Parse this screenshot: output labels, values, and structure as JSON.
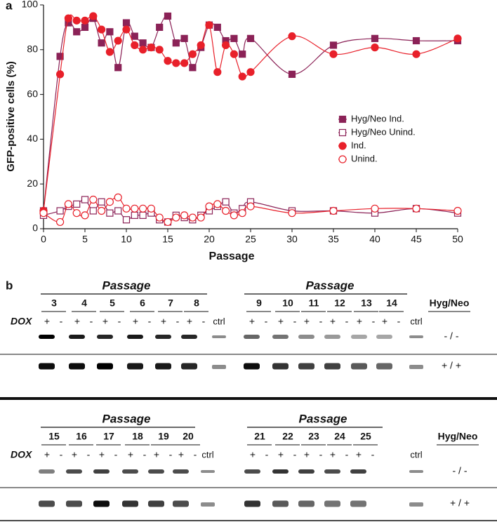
{
  "panel_labels": [
    "a",
    "b"
  ],
  "chart_data": {
    "type": "line",
    "xlabel": "Passage",
    "ylabel": "GFP-positive cells (%)",
    "x": [
      0,
      2,
      3,
      4,
      5,
      6,
      7,
      8,
      9,
      10,
      11,
      12,
      13,
      14,
      15,
      16,
      17,
      18,
      19,
      20,
      21,
      22,
      23,
      24,
      25,
      30,
      35,
      40,
      45,
      50
    ],
    "series": [
      {
        "name": "Hyg/Neo Ind.",
        "color": "#8b2257",
        "marker": "square",
        "filled": true,
        "values": [
          8,
          77,
          92,
          88,
          90,
          94,
          83,
          88,
          72,
          92,
          86,
          83,
          81,
          90,
          95,
          83,
          85,
          72,
          81,
          91,
          90,
          84,
          85,
          78,
          85,
          69,
          82,
          85,
          84,
          84
        ]
      },
      {
        "name": "Hyg/Neo Unind.",
        "color": "#8b2257",
        "marker": "square",
        "filled": false,
        "values": [
          6,
          8,
          10,
          11,
          13,
          8,
          12,
          7,
          8,
          4,
          6,
          6,
          7,
          4,
          3,
          6,
          5,
          4,
          6,
          8,
          10,
          12,
          7,
          9,
          12,
          8,
          8,
          7,
          9,
          7
        ]
      },
      {
        "name": "Ind.",
        "color": "#e8202a",
        "marker": "circle",
        "filled": true,
        "values": [
          8,
          69,
          94,
          93,
          93,
          95,
          89,
          79,
          84,
          89,
          82,
          80,
          81,
          80,
          75,
          74,
          74,
          78,
          82,
          91,
          70,
          82,
          78,
          68,
          70,
          86,
          78,
          81,
          78,
          85
        ]
      },
      {
        "name": "Unind.",
        "color": "#e8202a",
        "marker": "circle",
        "filled": false,
        "values": [
          7,
          3,
          11,
          7,
          6,
          13,
          8,
          12,
          14,
          9,
          9,
          9,
          9,
          5,
          3,
          5,
          6,
          5,
          5,
          10,
          11,
          8,
          6,
          7,
          10,
          7,
          8,
          9,
          9,
          8
        ]
      }
    ],
    "xlim": [
      0,
      50
    ],
    "xticks": [
      0,
      5,
      10,
      15,
      20,
      25,
      30,
      35,
      40,
      45,
      50
    ],
    "ylim": [
      0,
      100
    ],
    "yticks": [
      0,
      20,
      40,
      60,
      80,
      100
    ],
    "legend_position": "center right",
    "smooth": true
  },
  "panel_b": {
    "dox_label": "DOX",
    "signs": [
      "+",
      "-"
    ],
    "ctrl": "ctrl",
    "genotype_title": "Hyg/Neo",
    "genotypes": [
      "- / -",
      "+ / +"
    ],
    "blocks": [
      {
        "groups": [
          {
            "title": "Passage",
            "lanes": [
              "3",
              "4",
              "5",
              "6",
              "7",
              "8"
            ]
          },
          {
            "title": "Passage",
            "lanes": [
              "9",
              "10",
              "11",
              "12",
              "13",
              "14"
            ]
          }
        ]
      },
      {
        "groups": [
          {
            "title": "Passage",
            "lanes": [
              "15",
              "16",
              "17",
              "18",
              "19",
              "20"
            ]
          },
          {
            "title": "Passage",
            "lanes": [
              "21",
              "22",
              "23",
              "24",
              "25"
            ]
          }
        ]
      }
    ]
  }
}
